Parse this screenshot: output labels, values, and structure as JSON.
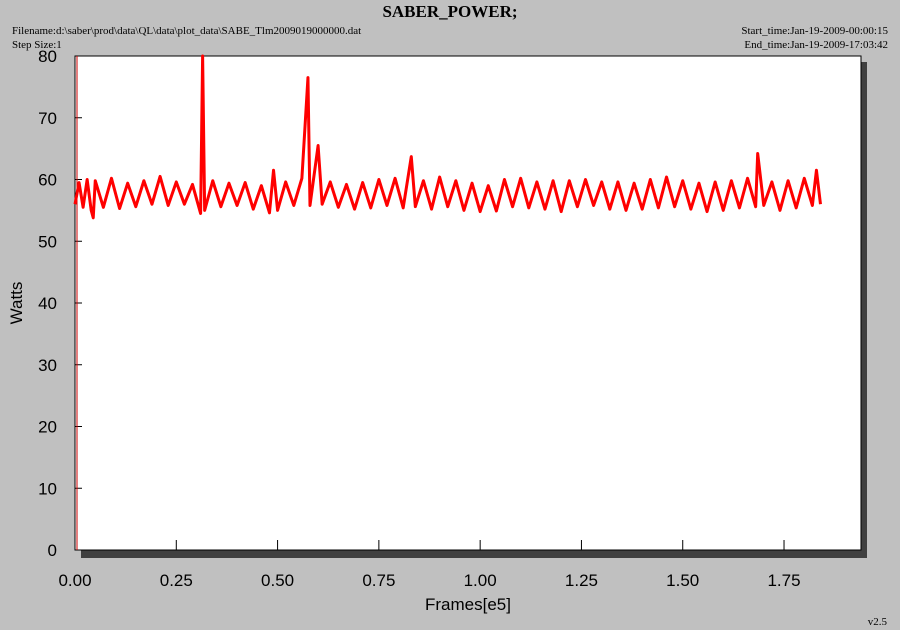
{
  "chart_data": {
    "type": "line",
    "title": "SABER_POWER;",
    "filename": "Filename:d:\\saber\\prod\\data\\QL\\data\\plot_data\\SABE_Tlm2009019000000.dat",
    "step_size": "Step Size:1",
    "start_time": "Start_time:Jan-19-2009-00:00:15",
    "end_time": "End_time:Jan-19-2009-17:03:42",
    "version": "v2.5",
    "x_label": "Frames[e5]",
    "y_label": "Watts",
    "xlim": [
      0,
      1.94
    ],
    "ylim": [
      0,
      80
    ],
    "xticks": [
      {
        "value": 0,
        "label": "0.00"
      },
      0.25,
      {
        "value": 0.5,
        "label": "0.50"
      },
      0.75,
      {
        "value": 1,
        "label": "1.00"
      },
      1.25,
      {
        "value": 1.5,
        "label": "1.50"
      },
      1.75
    ],
    "yticks": [
      0,
      10,
      20,
      30,
      40,
      50,
      60,
      70,
      80
    ],
    "series": [
      {
        "color": "#ff0000",
        "x": [
          0,
          0.01,
          0.02,
          0.03,
          0.04,
          0.045,
          0.05,
          0.07,
          0.09,
          0.11,
          0.13,
          0.15,
          0.17,
          0.19,
          0.21,
          0.23,
          0.25,
          0.27,
          0.29,
          0.31,
          0.315,
          0.32,
          0.34,
          0.36,
          0.38,
          0.4,
          0.42,
          0.44,
          0.46,
          0.48,
          0.49,
          0.5,
          0.52,
          0.54,
          0.56,
          0.575,
          0.58,
          0.6,
          0.61,
          0.63,
          0.65,
          0.67,
          0.69,
          0.71,
          0.73,
          0.75,
          0.77,
          0.79,
          0.81,
          0.83,
          0.84,
          0.86,
          0.88,
          0.9,
          0.92,
          0.94,
          0.96,
          0.98,
          1,
          1.02,
          1.04,
          1.06,
          1.08,
          1.1,
          1.12,
          1.14,
          1.16,
          1.18,
          1.2,
          1.22,
          1.24,
          1.26,
          1.28,
          1.3,
          1.32,
          1.34,
          1.36,
          1.38,
          1.4,
          1.42,
          1.44,
          1.46,
          1.48,
          1.5,
          1.52,
          1.54,
          1.56,
          1.58,
          1.6,
          1.62,
          1.64,
          1.66,
          1.68,
          1.685,
          1.7,
          1.72,
          1.74,
          1.76,
          1.78,
          1.8,
          1.82,
          1.83,
          1.84
        ],
        "values": [
          56,
          59.5,
          55.5,
          60,
          55,
          53.8,
          59.8,
          55.5,
          60.2,
          55.3,
          59.4,
          55.6,
          59.8,
          56,
          60.5,
          55.8,
          59.6,
          56,
          59.2,
          54.5,
          80,
          55,
          59.8,
          55.6,
          59.4,
          55.8,
          59.5,
          55.2,
          59,
          54.6,
          61.5,
          55,
          59.6,
          55.8,
          60.2,
          76.5,
          55.8,
          65.5,
          56,
          59.6,
          55.5,
          59.2,
          55.2,
          59.5,
          55.4,
          60,
          55.8,
          60.2,
          55.4,
          63.7,
          55.6,
          59.8,
          55.2,
          60.4,
          55.6,
          59.8,
          55,
          59.4,
          54.8,
          59,
          54.9,
          60,
          55.6,
          60.2,
          55.4,
          59.6,
          55.2,
          59.8,
          54.8,
          59.8,
          55.6,
          60,
          55.8,
          59.6,
          55.2,
          59.6,
          55,
          59.4,
          55.2,
          60,
          55.4,
          60.4,
          55.6,
          59.8,
          55.2,
          59.4,
          54.8,
          59.6,
          55,
          59.8,
          55.4,
          60.2,
          55.6,
          64.2,
          55.8,
          59.6,
          55,
          59.8,
          55.4,
          60.2,
          55.8,
          61.5,
          56
        ]
      }
    ]
  }
}
